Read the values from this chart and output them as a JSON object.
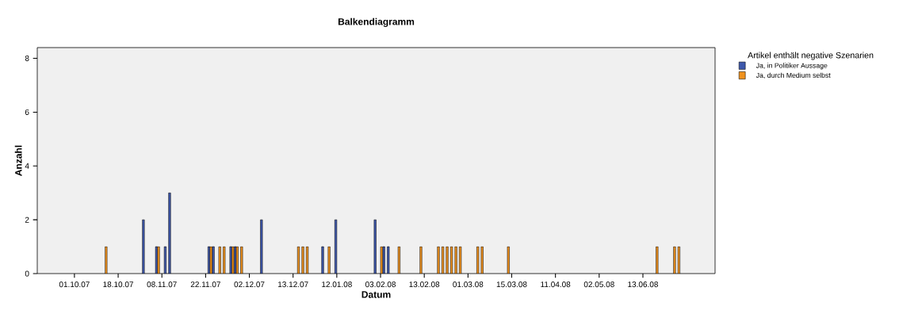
{
  "chart_data": {
    "type": "bar",
    "title": "Balkendiagramm",
    "xlabel": "Datum",
    "ylabel": "Anzahl",
    "legend_title": "Artikel enthält negative Szenarien",
    "categories": [
      null,
      null,
      null,
      null,
      null,
      null,
      null,
      null,
      "01.10.07",
      null,
      null,
      null,
      null,
      null,
      null,
      null,
      null,
      null,
      "18.10.07",
      null,
      null,
      null,
      null,
      null,
      null,
      null,
      null,
      null,
      "08.11.07",
      null,
      null,
      null,
      null,
      null,
      null,
      null,
      null,
      null,
      "22.11.07",
      null,
      null,
      null,
      null,
      null,
      null,
      null,
      null,
      null,
      "02.12.07",
      null,
      null,
      null,
      null,
      null,
      null,
      null,
      null,
      null,
      "13.12.07",
      null,
      null,
      null,
      null,
      null,
      null,
      null,
      null,
      null,
      "12.01.08",
      null,
      null,
      null,
      null,
      null,
      null,
      null,
      null,
      null,
      "03.02.08",
      null,
      null,
      null,
      null,
      null,
      null,
      null,
      null,
      null,
      "13.02.08",
      null,
      null,
      null,
      null,
      null,
      null,
      null,
      null,
      null,
      "01.03.08",
      null,
      null,
      null,
      null,
      null,
      null,
      null,
      null,
      null,
      "15.03.08",
      null,
      null,
      null,
      null,
      null,
      null,
      null,
      null,
      null,
      "11.04.08",
      null,
      null,
      null,
      null,
      null,
      null,
      null,
      null,
      null,
      "02.05.08",
      null,
      null,
      null,
      null,
      null,
      null,
      null,
      null,
      null,
      "13.06.08",
      null,
      null,
      null,
      null,
      null,
      null,
      null,
      null,
      null,
      null,
      null,
      null,
      null,
      null,
      null,
      null
    ],
    "series": [
      {
        "name": "Ja, in Politiker Aussage",
        "color": "#3e58ac",
        "values": [
          null,
          null,
          null,
          null,
          null,
          null,
          null,
          null,
          null,
          null,
          null,
          null,
          null,
          null,
          null,
          null,
          null,
          null,
          null,
          null,
          null,
          null,
          null,
          null,
          2,
          null,
          null,
          1,
          null,
          1,
          3,
          null,
          null,
          null,
          null,
          null,
          null,
          null,
          null,
          1,
          1,
          null,
          null,
          null,
          1,
          1,
          null,
          null,
          null,
          null,
          null,
          2,
          null,
          null,
          null,
          null,
          null,
          null,
          null,
          null,
          null,
          null,
          null,
          null,
          null,
          1,
          null,
          null,
          2,
          null,
          null,
          null,
          null,
          null,
          null,
          null,
          null,
          2,
          null,
          1,
          1,
          null,
          null,
          null,
          null,
          null,
          null,
          null,
          null,
          null,
          null,
          null,
          null,
          null,
          null,
          null,
          null,
          null,
          null,
          null,
          null,
          null,
          null,
          null,
          null,
          null,
          null,
          null,
          null,
          null,
          null,
          null,
          null,
          null,
          null,
          null,
          null,
          null,
          null,
          null,
          null,
          null,
          null,
          null,
          null,
          null,
          null,
          null,
          null,
          null,
          null,
          null,
          null,
          null,
          null,
          null,
          null,
          null,
          null,
          null,
          null,
          null,
          null,
          null,
          null,
          null,
          null,
          null,
          null,
          null,
          null,
          null,
          null,
          null,
          null
        ]
      },
      {
        "name": "Ja, durch Medium selbst",
        "color": "#f0921e",
        "values": [
          null,
          null,
          null,
          null,
          null,
          null,
          null,
          null,
          null,
          null,
          null,
          null,
          null,
          null,
          null,
          1,
          null,
          null,
          null,
          null,
          null,
          null,
          null,
          null,
          null,
          null,
          null,
          1,
          null,
          null,
          null,
          null,
          null,
          null,
          null,
          null,
          null,
          null,
          null,
          1,
          null,
          1,
          1,
          null,
          1,
          1,
          1,
          null,
          null,
          null,
          null,
          null,
          null,
          null,
          null,
          null,
          null,
          null,
          null,
          1,
          1,
          1,
          null,
          null,
          null,
          null,
          1,
          null,
          null,
          null,
          null,
          null,
          null,
          null,
          null,
          null,
          null,
          null,
          1,
          null,
          null,
          null,
          1,
          null,
          null,
          null,
          null,
          1,
          null,
          null,
          null,
          1,
          1,
          1,
          1,
          1,
          1,
          null,
          null,
          null,
          1,
          1,
          null,
          null,
          null,
          null,
          null,
          1,
          null,
          null,
          null,
          null,
          null,
          null,
          null,
          null,
          null,
          null,
          null,
          null,
          null,
          null,
          null,
          null,
          null,
          null,
          null,
          null,
          null,
          null,
          null,
          null,
          null,
          null,
          null,
          null,
          null,
          null,
          null,
          null,
          null,
          1,
          null,
          null,
          null,
          1,
          1,
          null,
          null,
          null,
          null,
          null,
          null,
          null,
          null
        ]
      }
    ],
    "ylim": [
      0,
      8.4
    ],
    "yticks": [
      0,
      2,
      4,
      6,
      8
    ],
    "legend": "right"
  }
}
